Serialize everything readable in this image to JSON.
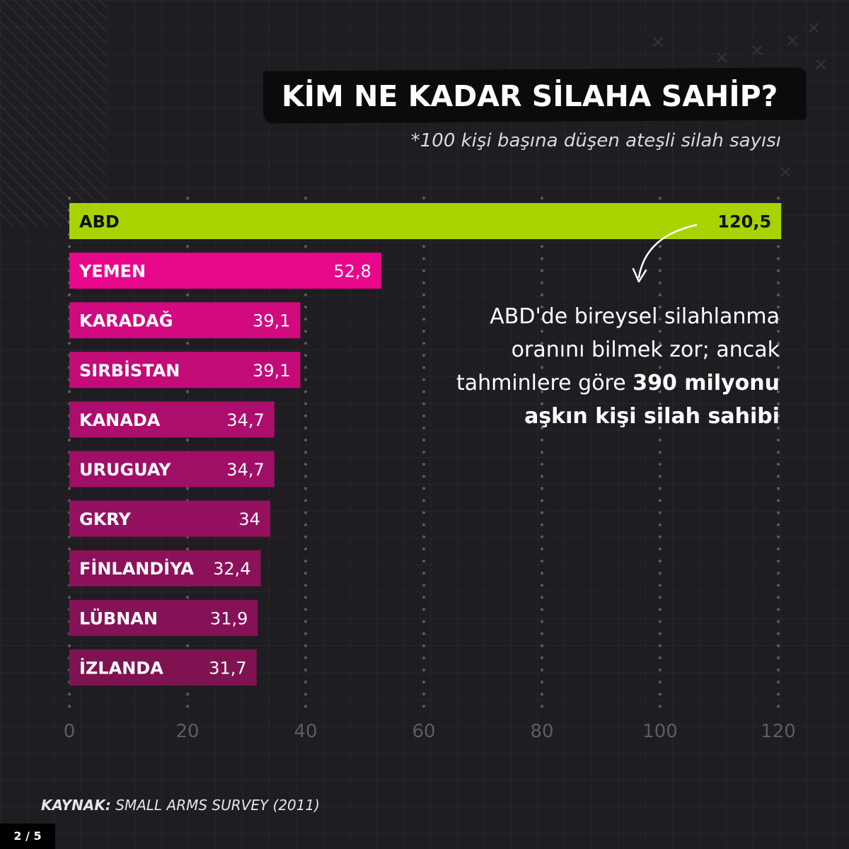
{
  "title": "KİM NE KADAR SİLAHA SAHİP?",
  "subtitle": "*100 kişi başına düşen ateşli silah sayısı",
  "annotation": {
    "text_before": "ABD'de bireysel silahlanma oranını bilmek zor; ancak tahminlere göre ",
    "bold": "390 milyonu aşkın kişi silah sahibi"
  },
  "source": {
    "label": "KAYNAK:",
    "text": " SMALL ARMS SURVEY (2011)"
  },
  "page_indicator": "2 / 5",
  "chart_data": {
    "type": "bar",
    "orientation": "horizontal",
    "title": "KİM NE KADAR SİLAHA SAHİP?",
    "subtitle": "*100 kişi başına düşen ateşli silah sayısı",
    "categories": [
      "ABD",
      "YEMEN",
      "KARADAĞ",
      "SIRBİSTAN",
      "KANADA",
      "URUGUAY",
      "GKRY",
      "FİNLANDİYA",
      "LÜBNAN",
      "İZLANDA"
    ],
    "values": [
      120.5,
      52.8,
      39.1,
      39.1,
      34.7,
      34.7,
      34,
      32.4,
      31.9,
      31.7
    ],
    "value_labels": [
      "120,5",
      "52,8",
      "39,1",
      "39,1",
      "34,7",
      "34,7",
      "34",
      "32,4",
      "31,9",
      "31,7"
    ],
    "xlim": [
      0,
      120
    ],
    "xticks": [
      0,
      20,
      40,
      60,
      80,
      100,
      120
    ],
    "xlabel": "",
    "ylabel": "",
    "grid": "dotted vertical",
    "colors": {
      "highlight": "#a8d300",
      "bars": [
        "#e8078b",
        "#d2097f",
        "#c40b77",
        "#ad0d6c",
        "#a10e66",
        "#961060",
        "#8c115b",
        "#851256",
        "#7f1352"
      ]
    }
  }
}
